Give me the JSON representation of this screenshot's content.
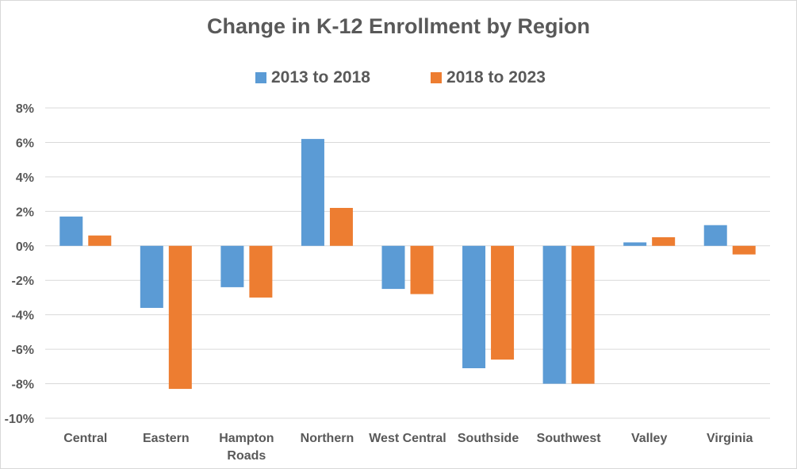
{
  "chart_data": {
    "type": "bar",
    "title": "Change in K-12 Enrollment by Region",
    "xlabel": "",
    "ylabel": "",
    "categories": [
      "Central",
      "Eastern",
      "Hampton Roads",
      "Northern",
      "West Central",
      "Southside",
      "Southwest",
      "Valley",
      "Virginia"
    ],
    "series": [
      {
        "name": "2013 to 2018",
        "color": "#5b9bd5",
        "values": [
          1.7,
          -3.6,
          -2.4,
          6.2,
          -2.5,
          -7.1,
          -8.0,
          0.2,
          1.2
        ]
      },
      {
        "name": "2018 to 2023",
        "color": "#ed7d31",
        "values": [
          0.6,
          -8.3,
          -3.0,
          2.2,
          -2.8,
          -6.6,
          -8.0,
          0.5,
          -0.5
        ]
      }
    ],
    "ylim": [
      -10,
      8
    ],
    "yticks": [
      8,
      6,
      4,
      2,
      0,
      -2,
      -4,
      -6,
      -8,
      -10
    ],
    "ytick_labels": [
      "8%",
      "6%",
      "4%",
      "2%",
      "0%",
      "-2%",
      "-4%",
      "-6%",
      "-8%",
      "-10%"
    ],
    "grid": true,
    "legend_position": "top"
  }
}
